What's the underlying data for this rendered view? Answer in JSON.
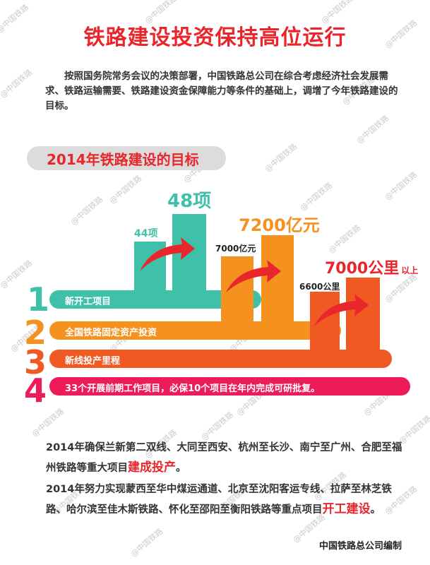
{
  "watermark": "@中国铁路",
  "title": "铁路建设投资保持高位运行",
  "intro": "按照国务院常务会议的决策部署，中国铁路总公司在综合考虑经济社会发展需求、铁路运输需要、铁路建设资金保障能力等条件的基础上，调增了今年铁路建设的目标。",
  "section_title": "2014年铁路建设的目标",
  "colors": {
    "teal": "#3fc0a8",
    "orange": "#f5911e",
    "redorange": "#f05a22",
    "pink": "#ec1c5a",
    "red": "#e8262b"
  },
  "groups": [
    {
      "before": "44项",
      "after": "48项"
    },
    {
      "before": "7000亿元",
      "after": "7200亿元"
    },
    {
      "before": "6600公里",
      "after": "7000公里",
      "after_suffix": "以上"
    }
  ],
  "rows": [
    {
      "num": "1",
      "label": "新开工项目"
    },
    {
      "num": "2",
      "label": "全国铁路固定资产投资"
    },
    {
      "num": "3",
      "label": "新线投产里程"
    },
    {
      "num": "4",
      "label": "33个开展前期工作项目，必保10个项目在年内完成可研批复。"
    }
  ],
  "para1": {
    "text": "2014年确保兰新第二双线、大同至西安、杭州至长沙、南宁至广州、合肥至福州铁路等重大项目",
    "highlight": "建成投产",
    "end": "。"
  },
  "para2": {
    "text": "2014年努力实现蒙西至华中煤运通道、北京至沈阳客运专线、拉萨至林芝铁路、哈尔滨至佳木斯铁路、怀化至邵阳至衡阳铁路等重点项目",
    "highlight": "开工建设",
    "end": "。"
  },
  "footer": "中国铁路总公司编制"
}
